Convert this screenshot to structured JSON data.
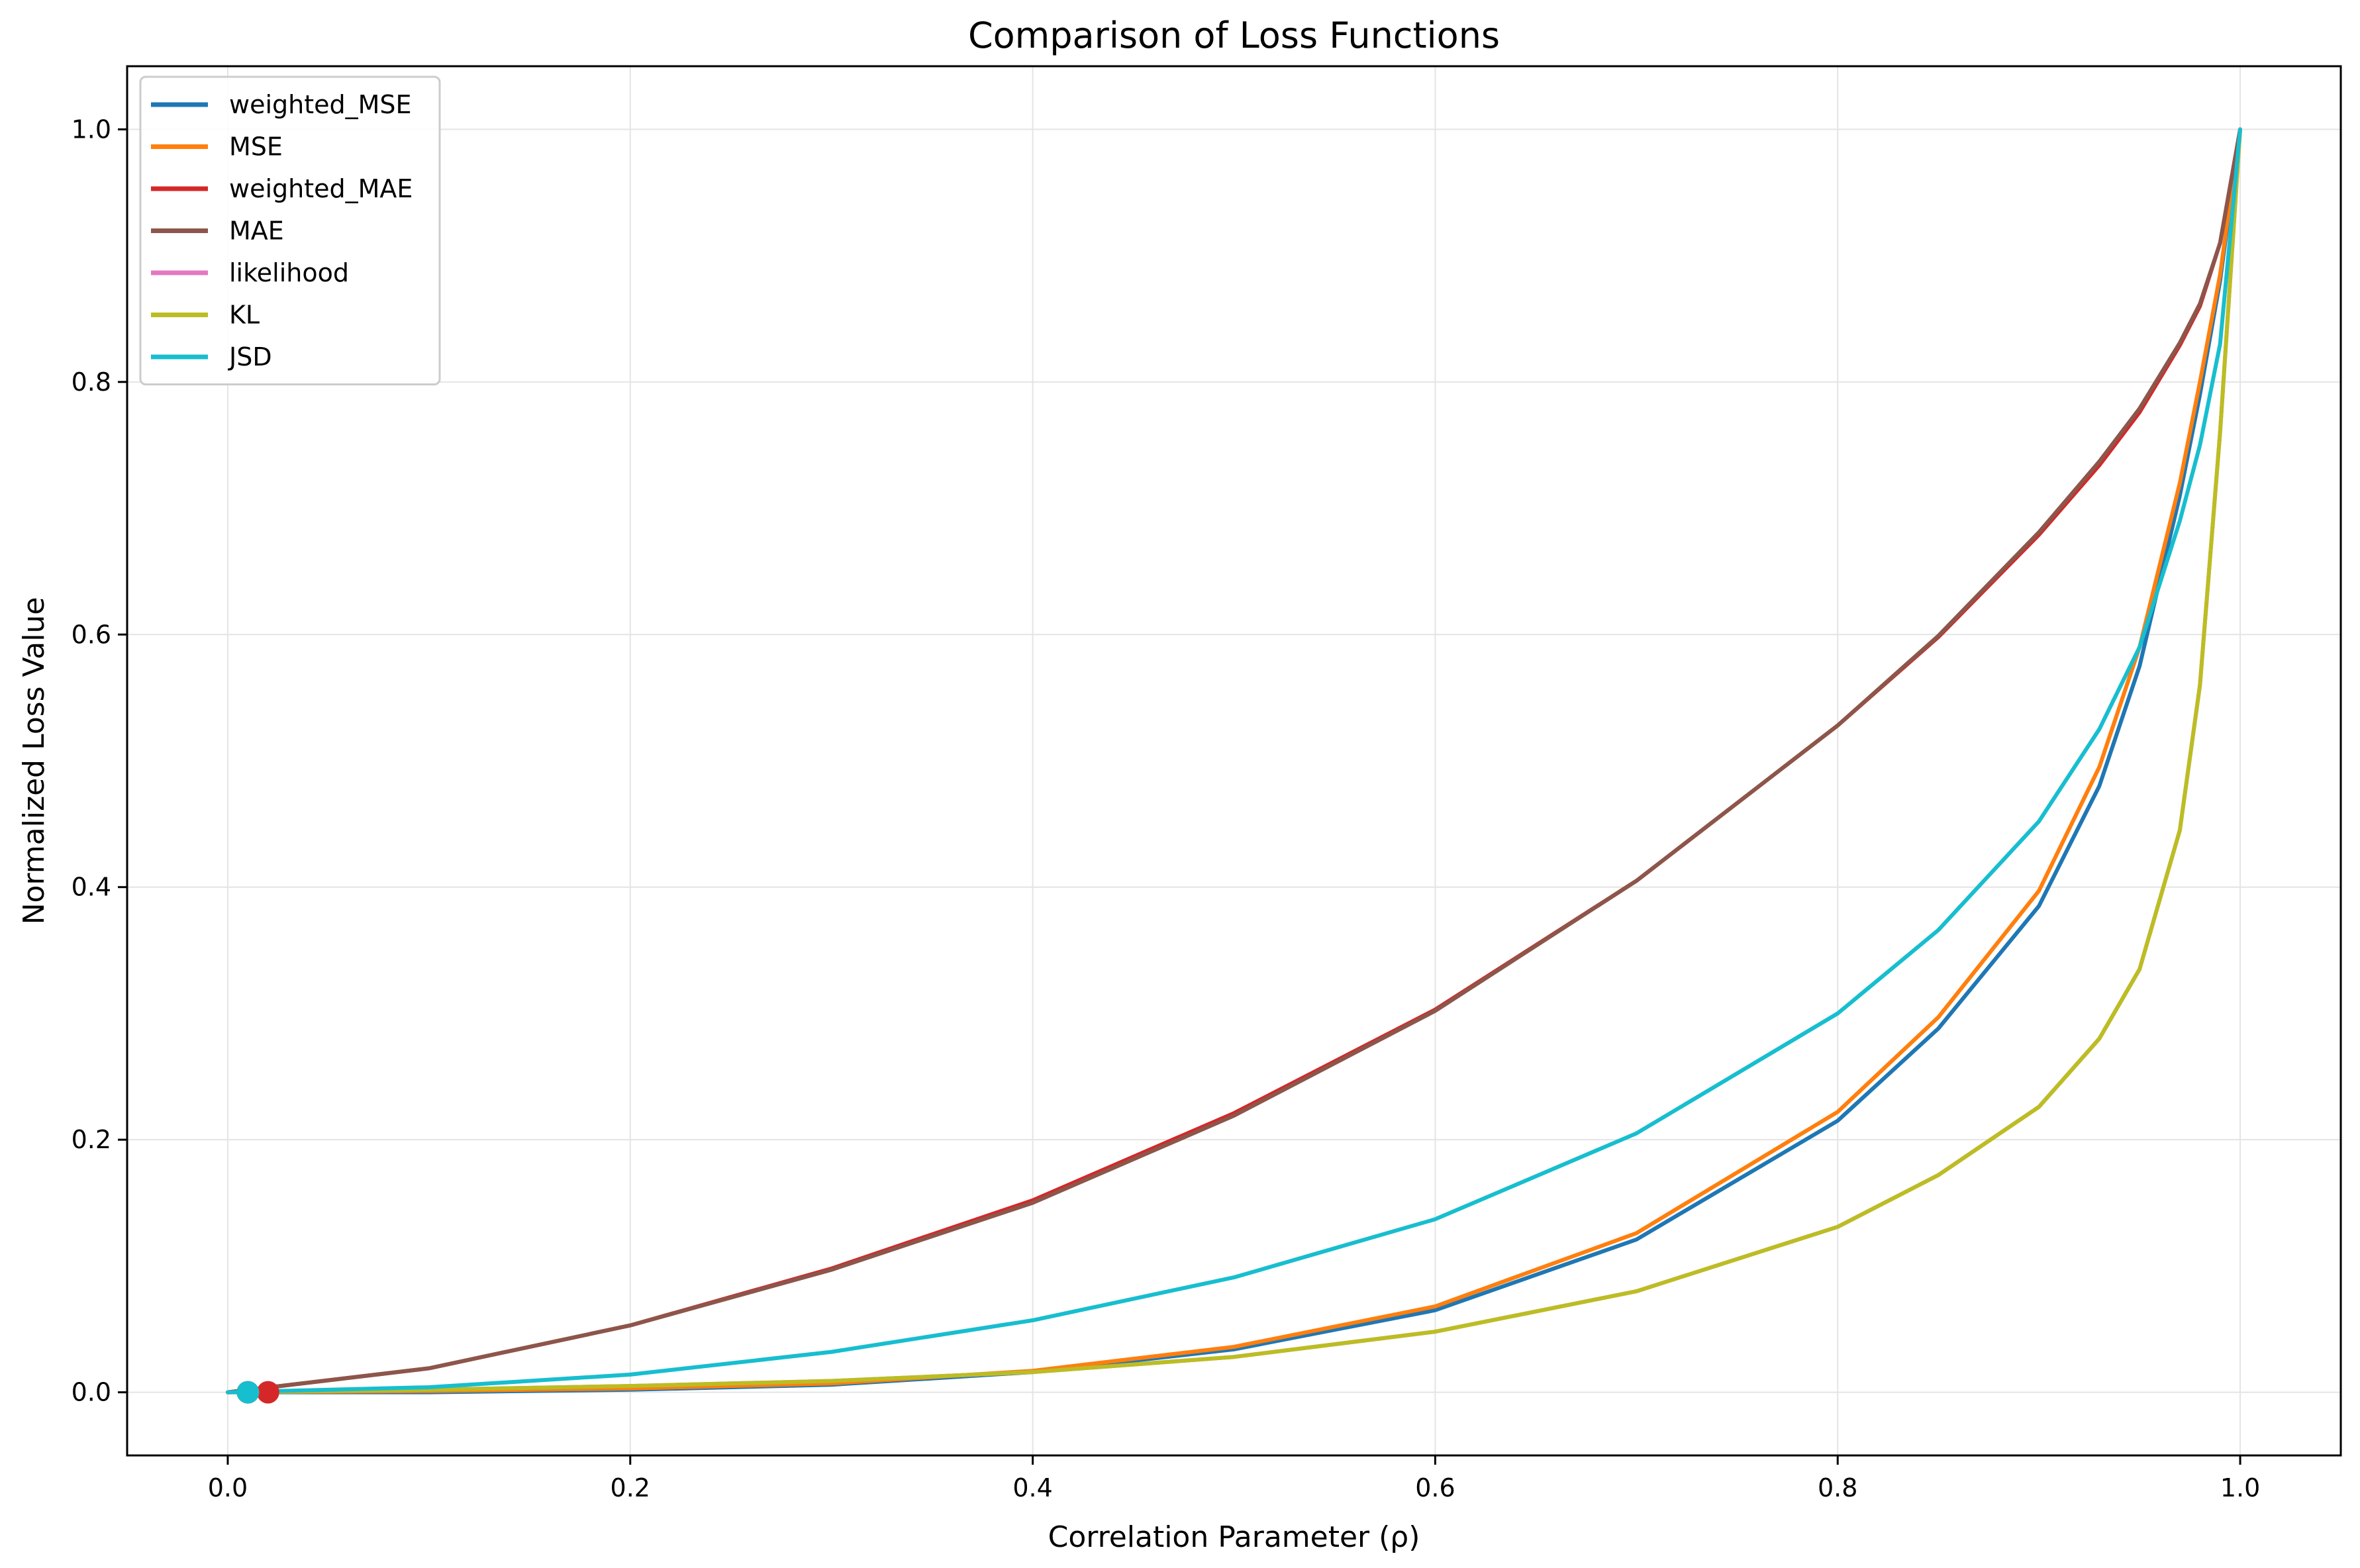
{
  "chart_data": {
    "type": "line",
    "title": "Comparison of Loss Functions",
    "xlabel": "Correlation Parameter (ρ)",
    "ylabel": "Normalized Loss Value",
    "xlim": [
      -0.05,
      1.05
    ],
    "ylim": [
      -0.05,
      1.05
    ],
    "xticks": [
      0.0,
      0.2,
      0.4,
      0.6,
      0.8,
      1.0
    ],
    "xtick_labels": [
      "0.0",
      "0.2",
      "0.4",
      "0.6",
      "0.8",
      "1.0"
    ],
    "yticks": [
      0.0,
      0.2,
      0.4,
      0.6,
      0.8,
      1.0
    ],
    "ytick_labels": [
      "0.0",
      "0.2",
      "0.4",
      "0.6",
      "0.8",
      "1.0"
    ],
    "grid": true,
    "legend_position": "upper-left",
    "x": [
      0.0,
      0.1,
      0.2,
      0.3,
      0.4,
      0.5,
      0.6,
      0.7,
      0.8,
      0.85,
      0.9,
      0.93,
      0.95,
      0.97,
      0.98,
      0.99,
      1.0
    ],
    "series": [
      {
        "name": "weighted_MSE",
        "color": "#1f77b4",
        "values": [
          0.0,
          0.0,
          0.002,
          0.006,
          0.016,
          0.034,
          0.065,
          0.121,
          0.215,
          0.288,
          0.385,
          0.48,
          0.575,
          0.71,
          0.79,
          0.88,
          1.0
        ],
        "marker": {
          "x": 0.01,
          "y": 0.0
        }
      },
      {
        "name": "MSE",
        "color": "#ff7f0e",
        "values": [
          0.0,
          0.001,
          0.003,
          0.007,
          0.017,
          0.036,
          0.068,
          0.126,
          0.222,
          0.297,
          0.397,
          0.495,
          0.59,
          0.72,
          0.8,
          0.885,
          1.0
        ],
        "marker": {
          "x": 0.01,
          "y": 0.0
        }
      },
      {
        "name": "weighted_MAE",
        "color": "#d62728",
        "values": [
          0.0,
          0.019,
          0.053,
          0.098,
          0.152,
          0.221,
          0.303,
          0.405,
          0.528,
          0.598,
          0.679,
          0.734,
          0.776,
          0.829,
          0.86,
          0.91,
          1.0
        ],
        "marker": {
          "x": 0.02,
          "y": 0.0
        }
      },
      {
        "name": "MAE",
        "color": "#8c564b",
        "values": [
          0.0,
          0.019,
          0.053,
          0.097,
          0.15,
          0.219,
          0.302,
          0.405,
          0.528,
          0.599,
          0.681,
          0.737,
          0.779,
          0.831,
          0.862,
          0.91,
          1.0
        ],
        "marker": {
          "x": 0.01,
          "y": 0.0
        }
      },
      {
        "name": "likelihood",
        "color": "#e377c2",
        "values": [
          0.0,
          0.002,
          0.005,
          0.009,
          0.016,
          0.028,
          0.048,
          0.08,
          0.131,
          0.172,
          0.226,
          0.28,
          0.335,
          0.445,
          0.56,
          0.76,
          1.0
        ],
        "marker": {
          "x": 0.01,
          "y": 0.0
        }
      },
      {
        "name": "KL",
        "color": "#bcbd22",
        "values": [
          0.0,
          0.002,
          0.005,
          0.009,
          0.016,
          0.028,
          0.048,
          0.08,
          0.131,
          0.172,
          0.226,
          0.28,
          0.335,
          0.445,
          0.56,
          0.76,
          1.0
        ],
        "marker": {
          "x": 0.01,
          "y": 0.0
        }
      },
      {
        "name": "JSD",
        "color": "#17becf",
        "values": [
          0.0,
          0.004,
          0.014,
          0.032,
          0.057,
          0.091,
          0.137,
          0.205,
          0.3,
          0.366,
          0.452,
          0.525,
          0.59,
          0.69,
          0.75,
          0.83,
          1.0
        ],
        "marker": {
          "x": 0.01,
          "y": 0.0
        }
      }
    ]
  }
}
